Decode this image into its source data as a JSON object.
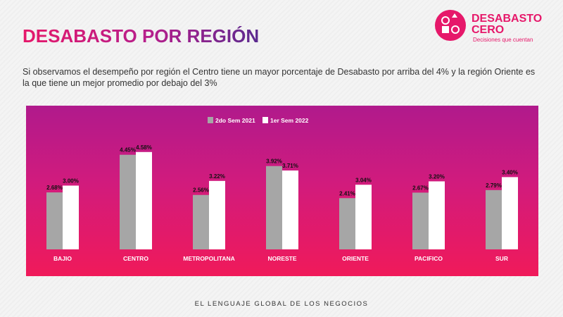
{
  "page": {
    "title": "DESABASTO POR REGIÓN",
    "subtitle": "Si observamos el desempeño por región el Centro tiene un mayor porcentaje de Desabasto por arriba del 4% y la región Oriente es la que tiene un mejor promedio por debajo del 3%",
    "footer": "EL LENGUAJE GLOBAL DE LOS NEGOCIOS"
  },
  "logo": {
    "line1": "DESABASTO",
    "line2": "CERO",
    "tagline": "Decisiones que cuentan",
    "color": "#e6186a"
  },
  "chart_data": {
    "type": "bar",
    "categories": [
      "BAJIO",
      "CENTRO",
      "METROPOLITANA",
      "NORESTE",
      "ORIENTE",
      "PACIFICO",
      "SUR"
    ],
    "series": [
      {
        "name": "2do Sem 2021",
        "values": [
          2.68,
          4.45,
          2.56,
          3.92,
          2.41,
          2.67,
          2.79
        ],
        "labels": [
          "2.68%",
          "4.45%",
          "2.56%",
          "3.92%",
          "2.41%",
          "2.67%",
          "2.79%"
        ],
        "color": "#a6a6a6"
      },
      {
        "name": "1er Sem 2022",
        "values": [
          3.0,
          4.58,
          3.22,
          3.71,
          3.04,
          3.2,
          3.4
        ],
        "labels": [
          "3.00%",
          "4.58%",
          "3.22%",
          "3.71%",
          "3.04%",
          "3.20%",
          "3.40%"
        ],
        "color": "#ffffff"
      }
    ],
    "ylim": [
      0,
      5
    ],
    "legend_position": "top-center",
    "grid": false
  }
}
